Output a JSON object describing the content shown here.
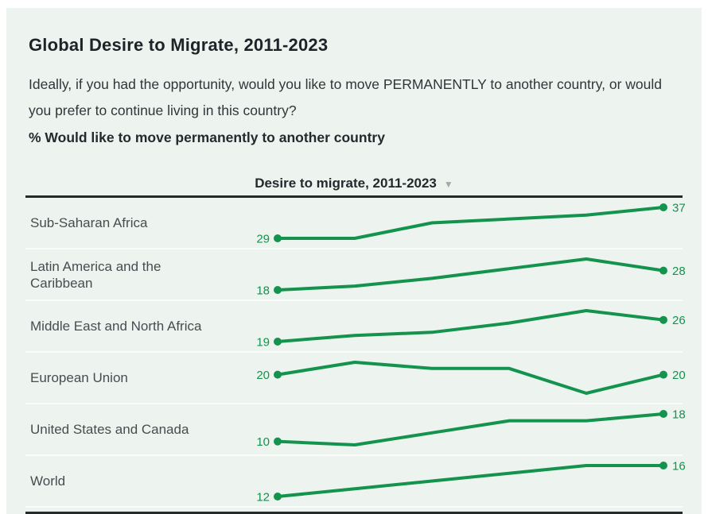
{
  "header": {
    "title": "Global Desire to Migrate, 2011-2023",
    "question": "Ideally, if you had the opportunity, would you like to move PERMANENTLY to another country, or would you prefer to continue living in this country?",
    "metric_label": "% Would like to move permanently to another country"
  },
  "table": {
    "column_header": "Desire to migrate, 2011-2023",
    "sort_indicator": "▼"
  },
  "colors": {
    "line_green": "#13934d",
    "card_background": "#edf3ee",
    "dark_rule": "#272a2b",
    "row_separator": "#fafcfa",
    "label_text": "#464d51"
  },
  "chart_data": {
    "type": "line",
    "title": "Global Desire to Migrate, 2011-2023",
    "subtitle": "% Would like to move permanently to another country",
    "x_range_label": "2011-2023",
    "legend_position": "none",
    "grid": false,
    "layout": "small-multiple sparklines per table row, each normalized to its own min/max; only first and last values labeled",
    "series": [
      {
        "name": "Sub-Saharan Africa",
        "start_value": 29,
        "end_value": 37,
        "values": [
          29,
          29,
          33,
          34,
          35,
          37
        ]
      },
      {
        "name": "Latin America and the Caribbean",
        "start_value": 18,
        "end_value": 28,
        "values": [
          18,
          20,
          24,
          29,
          34,
          28
        ]
      },
      {
        "name": "Middle East and North Africa",
        "start_value": 19,
        "end_value": 26,
        "values": [
          19,
          21,
          22,
          25,
          29,
          26
        ]
      },
      {
        "name": "European Union",
        "start_value": 20,
        "end_value": 20,
        "values": [
          20,
          22,
          21,
          21,
          17,
          20
        ]
      },
      {
        "name": "United States and Canada",
        "start_value": 10,
        "end_value": 18,
        "values": [
          10,
          9,
          12.5,
          16,
          16,
          18
        ]
      },
      {
        "name": "World",
        "start_value": 12,
        "end_value": 16,
        "values": [
          12,
          13,
          14,
          15,
          16,
          16
        ]
      }
    ]
  }
}
